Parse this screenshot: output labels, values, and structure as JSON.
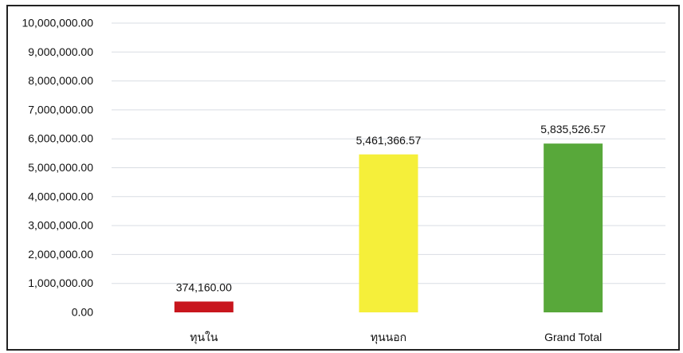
{
  "chart_data": {
    "type": "bar",
    "title": "",
    "xlabel": "",
    "ylabel": "",
    "categories": [
      "ทุนใน",
      "ทุนนอก",
      "Grand Total"
    ],
    "values": [
      374160.0,
      5461366.57,
      5835526.57
    ],
    "data_labels": [
      "374,160.00",
      "5,461,366.57",
      "5,835,526.57"
    ],
    "bar_colors": [
      "#c8161d",
      "#f5ef3a",
      "#58a83a"
    ],
    "ylim": [
      0,
      10000000
    ],
    "y_ticks": [
      0,
      1000000,
      2000000,
      3000000,
      4000000,
      5000000,
      6000000,
      7000000,
      8000000,
      9000000,
      10000000
    ],
    "y_tick_labels": [
      "0.00",
      "1,000,000.00",
      "2,000,000.00",
      "3,000,000.00",
      "4,000,000.00",
      "5,000,000.00",
      "6,000,000.00",
      "7,000,000.00",
      "8,000,000.00",
      "9,000,000.00",
      "10,000,000.00"
    ],
    "grid": true,
    "grid_color": "#d9dde3",
    "legend": "none"
  }
}
